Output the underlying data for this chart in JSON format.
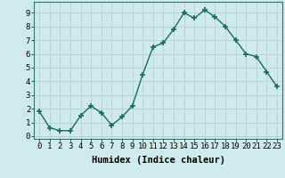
{
  "x": [
    0,
    1,
    2,
    3,
    4,
    5,
    6,
    7,
    8,
    9,
    10,
    11,
    12,
    13,
    14,
    15,
    16,
    17,
    18,
    19,
    20,
    21,
    22,
    23
  ],
  "y": [
    1.8,
    0.6,
    0.4,
    0.4,
    1.5,
    2.2,
    1.7,
    0.8,
    1.4,
    2.2,
    4.5,
    6.5,
    6.8,
    7.8,
    9.0,
    8.6,
    9.2,
    8.7,
    8.0,
    7.0,
    6.0,
    5.8,
    4.7,
    3.6
  ],
  "xlabel": "Humidex (Indice chaleur)",
  "ylim": [
    -0.2,
    9.8
  ],
  "xlim": [
    -0.5,
    23.5
  ],
  "line_color": "#1a6b5a",
  "bg_color": "#ceeaea",
  "grid_color": "#b8d4d4",
  "x_tick_labels": [
    "0",
    "1",
    "2",
    "3",
    "4",
    "5",
    "6",
    "7",
    "8",
    "9",
    "10",
    "11",
    "12",
    "13",
    "14",
    "15",
    "16",
    "17",
    "18",
    "19",
    "20",
    "21",
    "22",
    "23"
  ],
  "y_tick_labels": [
    "0",
    "1",
    "2",
    "3",
    "4",
    "5",
    "6",
    "7",
    "8",
    "9"
  ],
  "marker_size": 4,
  "line_width": 1.0,
  "xlabel_fontsize": 7.5,
  "tick_fontsize": 6.5
}
